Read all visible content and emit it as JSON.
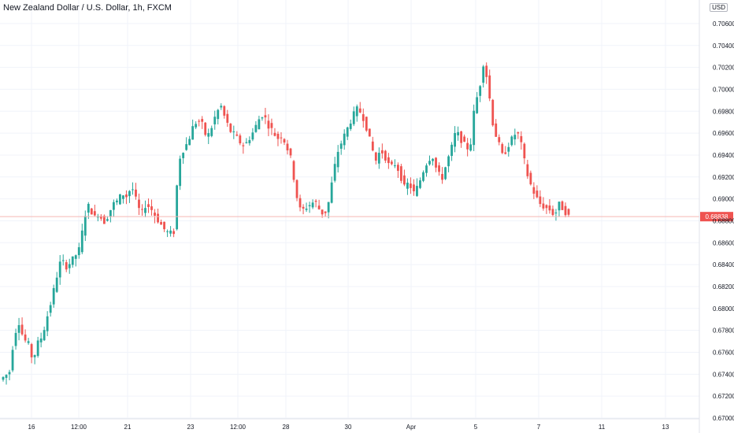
{
  "header": {
    "title": "New Zealand Dollar / U.S. Dollar, 1h, FXCM",
    "currency": "USD"
  },
  "price_label": "0.68838",
  "colors": {
    "up": "#26a69a",
    "down": "#ef5350",
    "grid": "#f0f3fa",
    "axis_text": "#131722",
    "last_price_line": "#f5b7b5",
    "last_price_label": "#ef5350"
  },
  "chart_data": {
    "type": "candlestick",
    "title": "New Zealand Dollar / U.S. Dollar, 1h, FXCM",
    "ylim": [
      0.67,
      0.707
    ],
    "y_ticks": [
      "0.70600",
      "0.70400",
      "0.70200",
      "0.70000",
      "0.69800",
      "0.69600",
      "0.69400",
      "0.69200",
      "0.69000",
      "0.68800",
      "0.68600",
      "0.68400",
      "0.68200",
      "0.68000",
      "0.67800",
      "0.67600",
      "0.67400",
      "0.67200",
      "0.67000"
    ],
    "x_ticks": [
      "16",
      "12:00",
      "21",
      "23",
      "12:00",
      "28",
      "30",
      "Apr",
      "5",
      "7",
      "11",
      "13"
    ],
    "last_price": 0.68838,
    "trend_path": [
      0.6735,
      0.6738,
      0.6742,
      0.6775,
      0.6788,
      0.6772,
      0.6768,
      0.6752,
      0.6768,
      0.6775,
      0.6792,
      0.6808,
      0.6828,
      0.6845,
      0.6838,
      0.6842,
      0.6848,
      0.6855,
      0.6885,
      0.6895,
      0.6882,
      0.6888,
      0.6878,
      0.6885,
      0.6895,
      0.6898,
      0.6905,
      0.6902,
      0.6912,
      0.6898,
      0.6885,
      0.6895,
      0.6892,
      0.6885,
      0.6878,
      0.6872,
      0.6868,
      0.687,
      0.6935,
      0.6945,
      0.6952,
      0.6965,
      0.6972,
      0.6968,
      0.6955,
      0.6965,
      0.6978,
      0.6985,
      0.6972,
      0.6962,
      0.6958,
      0.6952,
      0.6948,
      0.6955,
      0.6962,
      0.6972,
      0.6978,
      0.6968,
      0.6962,
      0.6955,
      0.6958,
      0.6948,
      0.6935,
      0.6905,
      0.6888,
      0.6892,
      0.6895,
      0.6898,
      0.689,
      0.6885,
      0.6898,
      0.6925,
      0.6945,
      0.6955,
      0.6965,
      0.6975,
      0.6982,
      0.6978,
      0.6965,
      0.6948,
      0.6935,
      0.6945,
      0.6938,
      0.6928,
      0.6932,
      0.6925,
      0.691,
      0.6915,
      0.6905,
      0.6912,
      0.6925,
      0.6935,
      0.694,
      0.6925,
      0.6918,
      0.6932,
      0.6945,
      0.6962,
      0.6955,
      0.6948,
      0.6945,
      0.6985,
      0.7,
      0.7028,
      0.6998,
      0.6965,
      0.6952,
      0.6938,
      0.6948,
      0.6955,
      0.6962,
      0.6948,
      0.6925,
      0.6912,
      0.6902,
      0.6895,
      0.6892,
      0.689,
      0.6885,
      0.6895,
      0.689,
      0.6884
    ]
  }
}
